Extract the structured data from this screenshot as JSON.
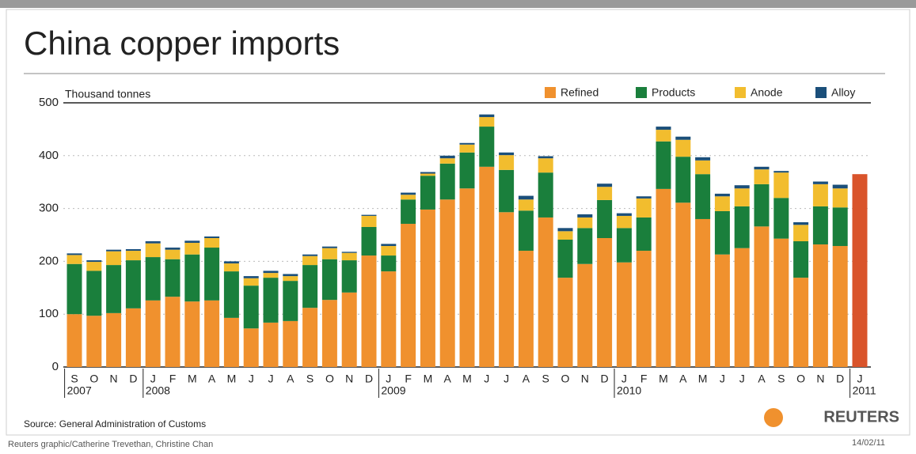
{
  "chart_data": {
    "type": "stacked-bar",
    "title": "China copper imports",
    "y_label": "Thousand tonnes",
    "source": "Source: General Administration of Customs",
    "logo": "REUTERS",
    "credit": "Reuters graphic/Catherine Trevethan, Christine Chan",
    "date": "14/02/11",
    "categories": [
      "S",
      "O",
      "N",
      "D",
      "J",
      "F",
      "M",
      "A",
      "M",
      "J",
      "J",
      "A",
      "S",
      "O",
      "N",
      "D",
      "J",
      "F",
      "M",
      "A",
      "M",
      "J",
      "J",
      "A",
      "S",
      "O",
      "N",
      "D",
      "J",
      "F",
      "M",
      "A",
      "M",
      "J",
      "J",
      "A",
      "S",
      "O",
      "N",
      "D",
      "J"
    ],
    "group_labels": [
      "2007",
      null,
      null,
      null,
      "2008",
      null,
      null,
      null,
      null,
      null,
      null,
      null,
      null,
      null,
      null,
      null,
      "2009",
      null,
      null,
      null,
      null,
      null,
      null,
      null,
      null,
      null,
      null,
      null,
      "2010",
      null,
      null,
      null,
      null,
      null,
      null,
      null,
      null,
      null,
      null,
      null,
      "2011"
    ],
    "ylim": [
      0,
      500
    ],
    "yticks": [
      0,
      100,
      200,
      300,
      400,
      500
    ],
    "grid": true,
    "series": [
      {
        "name": "Refined",
        "color": "#f0912e",
        "values": [
          100,
          97,
          102,
          111,
          126,
          133,
          124,
          126,
          93,
          73,
          84,
          87,
          112,
          127,
          141,
          211,
          181,
          271,
          298,
          317,
          338,
          379,
          293,
          220,
          283,
          169,
          195,
          244,
          198,
          220,
          337,
          311,
          280,
          213,
          225,
          266,
          243,
          169,
          232,
          229,
          null
        ]
      },
      {
        "name": "Products",
        "color": "#1a7f3c",
        "values": [
          95,
          85,
          91,
          91,
          82,
          71,
          89,
          100,
          88,
          81,
          85,
          76,
          81,
          77,
          61,
          54,
          30,
          46,
          64,
          68,
          68,
          76,
          80,
          76,
          85,
          72,
          68,
          72,
          65,
          63,
          90,
          87,
          85,
          82,
          79,
          80,
          77,
          69,
          72,
          73,
          null
        ]
      },
      {
        "name": "Anode",
        "color": "#f2bd2e",
        "values": [
          17,
          17,
          26,
          18,
          26,
          18,
          22,
          18,
          15,
          14,
          9,
          9,
          17,
          21,
          14,
          21,
          18,
          9,
          4,
          10,
          15,
          18,
          28,
          21,
          27,
          16,
          20,
          25,
          23,
          36,
          22,
          32,
          26,
          28,
          34,
          28,
          48,
          31,
          42,
          36,
          null
        ]
      },
      {
        "name": "Alloy",
        "color": "#1b4f7a",
        "values": [
          3,
          3,
          3,
          3,
          4,
          4,
          4,
          3,
          4,
          4,
          4,
          4,
          3,
          3,
          2,
          2,
          4,
          4,
          3,
          5,
          3,
          5,
          5,
          7,
          4,
          6,
          6,
          6,
          5,
          4,
          6,
          6,
          6,
          5,
          6,
          5,
          3,
          5,
          5,
          7,
          null
        ]
      },
      {
        "color": "#d9542b",
        "values": [
          null,
          null,
          null,
          null,
          null,
          null,
          null,
          null,
          null,
          null,
          null,
          null,
          null,
          null,
          null,
          null,
          null,
          null,
          null,
          null,
          null,
          null,
          null,
          null,
          null,
          null,
          null,
          null,
          null,
          null,
          null,
          null,
          null,
          null,
          null,
          null,
          null,
          null,
          null,
          null,
          365
        ]
      }
    ]
  }
}
